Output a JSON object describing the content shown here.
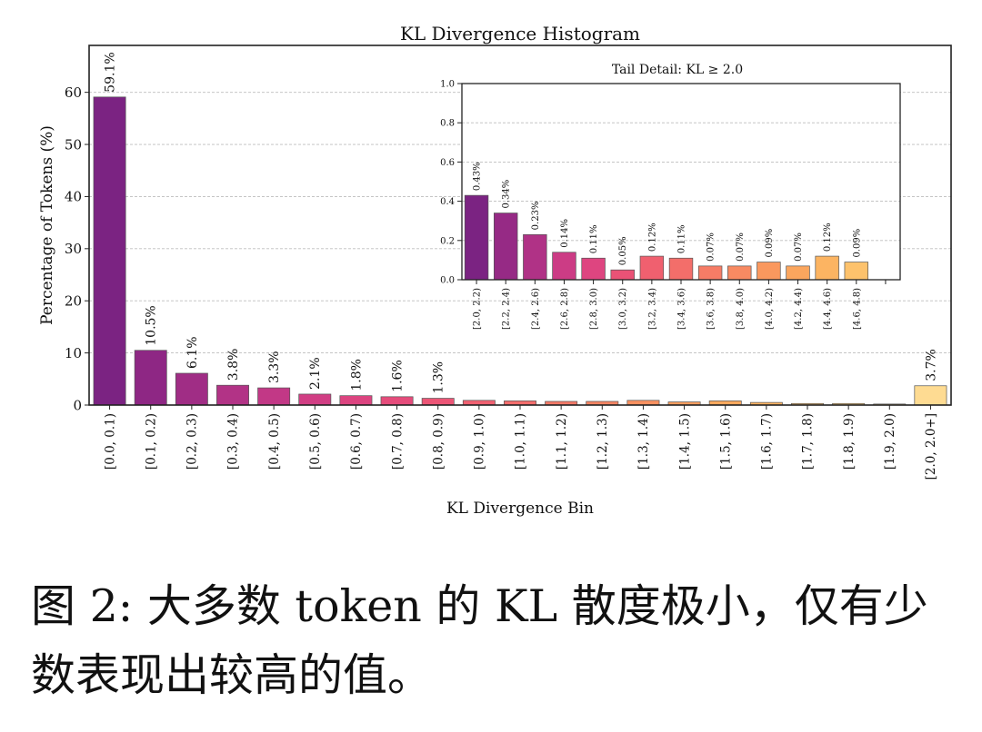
{
  "chart_data": [
    {
      "type": "bar",
      "title": "KL Divergence Histogram",
      "xlabel": "KL Divergence Bin",
      "ylabel": "Percentage of Tokens (%)",
      "ylim": [
        0,
        69
      ],
      "yticks": [
        0,
        10,
        20,
        30,
        40,
        50,
        60
      ],
      "grid": "y-dashed",
      "categories": [
        "[0.0, 0.1)",
        "[0.1, 0.2)",
        "[0.2, 0.3)",
        "[0.3, 0.4)",
        "[0.4, 0.5)",
        "[0.5, 0.6)",
        "[0.6, 0.7)",
        "[0.7, 0.8)",
        "[0.8, 0.9)",
        "[0.9, 1.0)",
        "[1.0, 1.1)",
        "[1.1, 1.2)",
        "[1.2, 1.3)",
        "[1.3, 1.4)",
        "[1.4, 1.5)",
        "[1.5, 1.6)",
        "[1.6, 1.7)",
        "[1.7, 1.8)",
        "[1.8, 1.9)",
        "[1.9, 2.0)",
        "[2.0, 2.0+]"
      ],
      "values": [
        59.1,
        10.5,
        6.1,
        3.8,
        3.3,
        2.1,
        1.8,
        1.6,
        1.3,
        0.9,
        0.8,
        0.7,
        0.7,
        0.9,
        0.6,
        0.8,
        0.5,
        0.3,
        0.3,
        0.2,
        3.7
      ],
      "data_labels": [
        "59.1%",
        "10.5%",
        "6.1%",
        "3.8%",
        "3.3%",
        "2.1%",
        "1.8%",
        "1.6%",
        "1.3%",
        "",
        "",
        "",
        "",
        "",
        "",
        "",
        "",
        "",
        "",
        "",
        "3.7%"
      ],
      "colors": [
        "#7b2382",
        "#8e2784",
        "#a02d85",
        "#b23386",
        "#c23886",
        "#d13e84",
        "#dc4480",
        "#e54c7b",
        "#ec5576",
        "#f06171",
        "#f36d6c",
        "#f57967",
        "#f78563",
        "#f99160",
        "#fa9d5e",
        "#fba95e",
        "#fcb462",
        "#fdbf6a",
        "#fdca74",
        "#fed480",
        "#fedb92"
      ]
    },
    {
      "type": "bar",
      "title": "Tail Detail: KL ≥ 2.0",
      "ylim": [
        0,
        1.0
      ],
      "yticks": [
        "0.0",
        "0.2",
        "0.4",
        "0.6",
        "0.8",
        "1.0"
      ],
      "grid": "y-dashed",
      "categories": [
        "[2.0, 2.2)",
        "[2.2, 2.4)",
        "[2.4, 2.6)",
        "[2.6, 2.8)",
        "[2.8, 3.0)",
        "[3.0, 3.2)",
        "[3.2, 3.4)",
        "[3.4, 3.6)",
        "[3.6, 3.8)",
        "[3.8, 4.0)",
        "[4.0, 4.2)",
        "[4.2, 4.4)",
        "[4.4, 4.6)",
        "[4.6, 4.8)",
        ""
      ],
      "values": [
        0.43,
        0.34,
        0.23,
        0.14,
        0.11,
        0.05,
        0.12,
        0.11,
        0.07,
        0.07,
        0.09,
        0.07,
        0.12,
        0.09,
        0.0
      ],
      "data_labels": [
        "0.43%",
        "0.34%",
        "0.23%",
        "0.14%",
        "0.11%",
        "0.05%",
        "0.12%",
        "0.11%",
        "0.07%",
        "0.07%",
        "0.09%",
        "0.07%",
        "0.12%",
        "0.09%",
        ""
      ],
      "colors": [
        "#7b2382",
        "#962a85",
        "#b03286",
        "#cc3c85",
        "#de4580",
        "#ea5276",
        "#f0606f",
        "#f36e6a",
        "#f67c66",
        "#f88a62",
        "#fa985e",
        "#fba65e",
        "#fcb462",
        "#fdc26c",
        "#fed480"
      ]
    }
  ],
  "caption": "图 2: 大多数 token 的 KL 散度极小，仅有少数表现出较高的值。"
}
